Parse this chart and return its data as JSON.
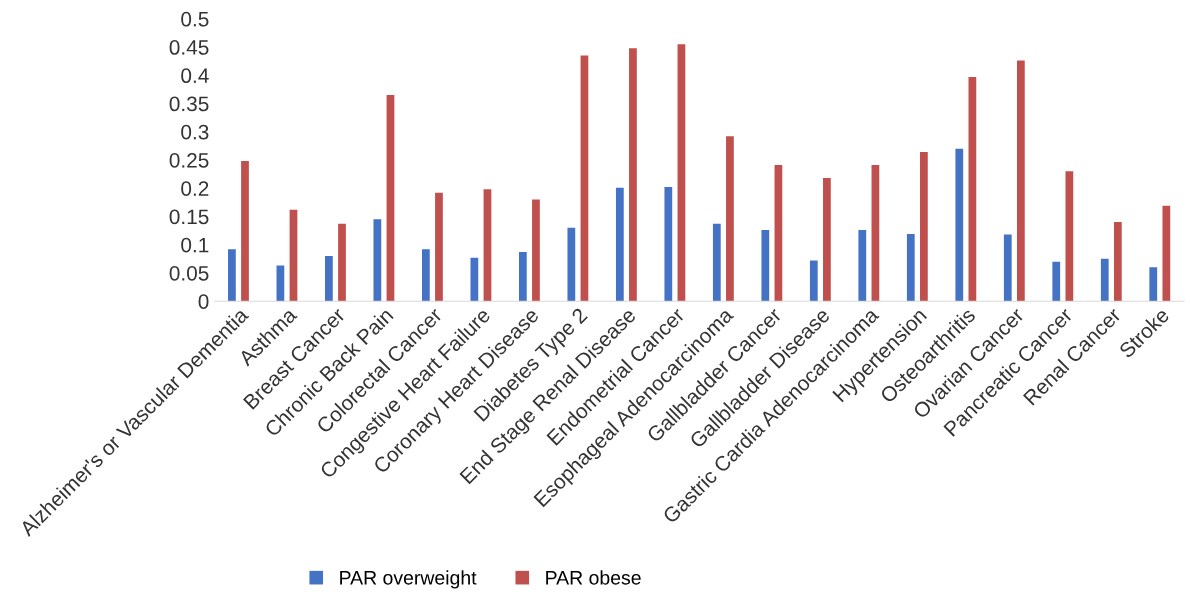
{
  "chart_data": {
    "type": "bar",
    "categories": [
      "Alzheimer's or Vascular Dementia",
      "Asthma",
      "Breast Cancer",
      "Chronic Back Pain",
      "Colorectal Cancer",
      "Congestive Heart Failure",
      "Coronary Heart Disease",
      "Diabetes Type 2",
      "End Stage Renal Disease",
      "Endometrial Cancer",
      "Esophageal Adenocarcinoma",
      "Gallbladder Cancer",
      "Gallbladder Disease",
      "Gastric Cardia Adenocarcinoma",
      "Hypertension",
      "Osteoarthritis",
      "Ovarian Cancer",
      "Pancreatic Cancer",
      "Renal Cancer",
      "Stroke"
    ],
    "series": [
      {
        "name": "PAR overweight",
        "color": "#4472c4",
        "values": [
          0.092,
          0.063,
          0.08,
          0.145,
          0.092,
          0.077,
          0.087,
          0.13,
          0.201,
          0.202,
          0.137,
          0.126,
          0.072,
          0.126,
          0.119,
          0.27,
          0.118,
          0.07,
          0.075,
          0.06
        ]
      },
      {
        "name": "PAR obese",
        "color": "#c0504d",
        "values": [
          0.248,
          0.162,
          0.137,
          0.365,
          0.192,
          0.198,
          0.18,
          0.435,
          0.448,
          0.455,
          0.292,
          0.241,
          0.218,
          0.241,
          0.264,
          0.397,
          0.426,
          0.23,
          0.14,
          0.169
        ]
      }
    ],
    "ylim": [
      0,
      0.5
    ],
    "yticks": [
      {
        "value": 0,
        "label": "0"
      },
      0.05,
      0.1,
      0.15,
      0.2,
      0.25,
      0.3,
      0.35,
      0.4,
      0.45,
      0.5
    ],
    "grid": false,
    "legend": "bottom"
  }
}
